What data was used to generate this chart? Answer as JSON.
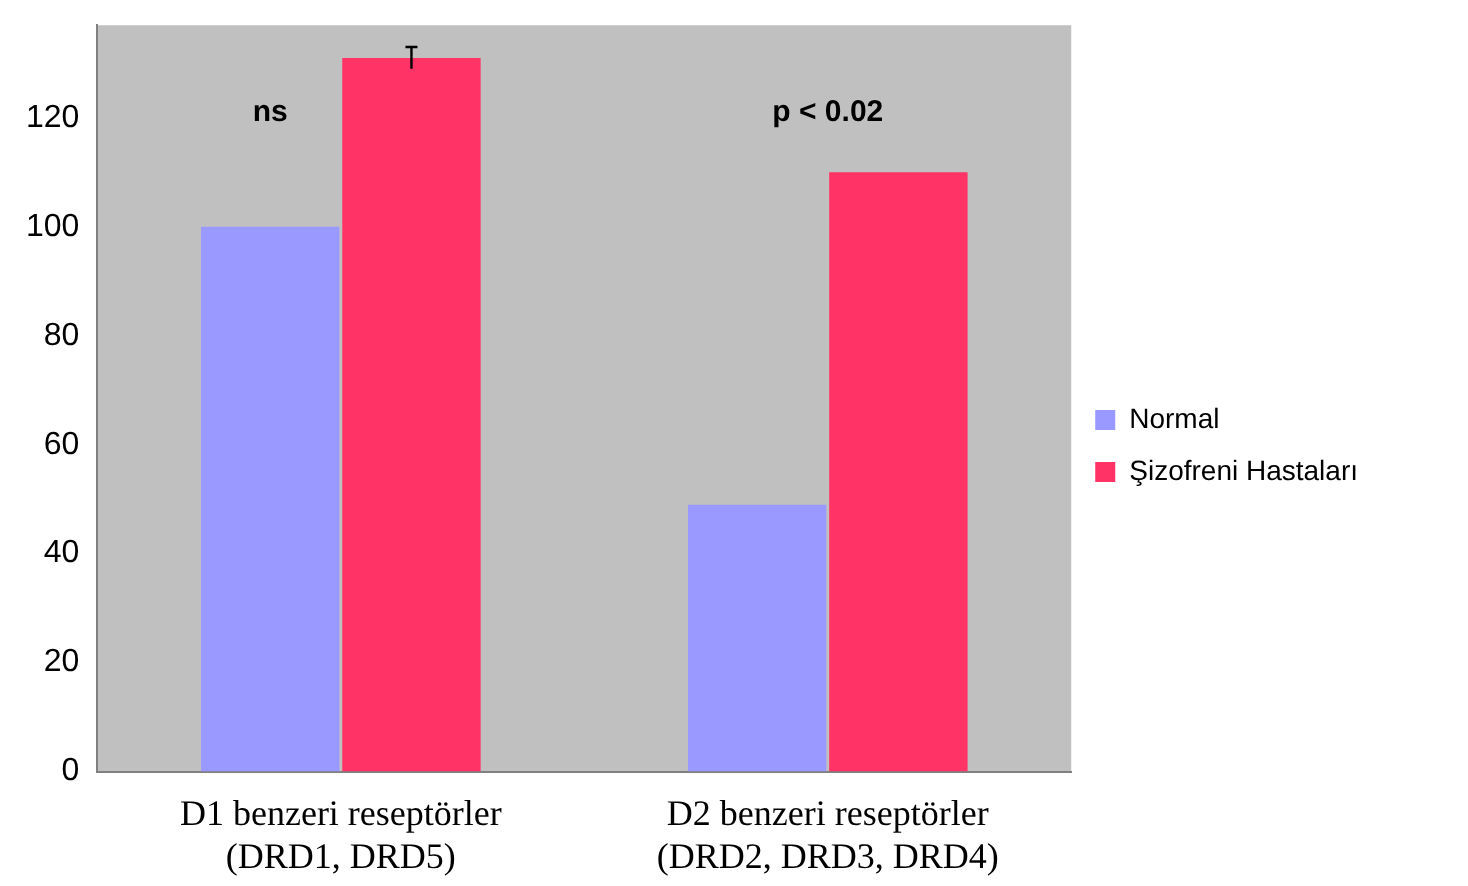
{
  "chart_data": {
    "type": "bar",
    "categories": [
      "D1 benzeri reseptörler\n(DRD1, DRD5)",
      "D2 benzeri reseptörler\n(DRD2, DRD3, DRD4)"
    ],
    "series": [
      {
        "name": "Normal",
        "color": "#9999ff",
        "values": [
          100,
          49
        ]
      },
      {
        "name": "Şizofreni Hastaları",
        "color": "#ff3366",
        "values": [
          131,
          110
        ],
        "errors": [
          2,
          null
        ]
      }
    ],
    "ylim": [
      0,
      137
    ],
    "yticks": [
      0,
      20,
      40,
      60,
      80,
      100,
      120
    ],
    "grid": false,
    "legend": "right",
    "annotations": [
      "ns",
      "p < 0.02"
    ]
  }
}
